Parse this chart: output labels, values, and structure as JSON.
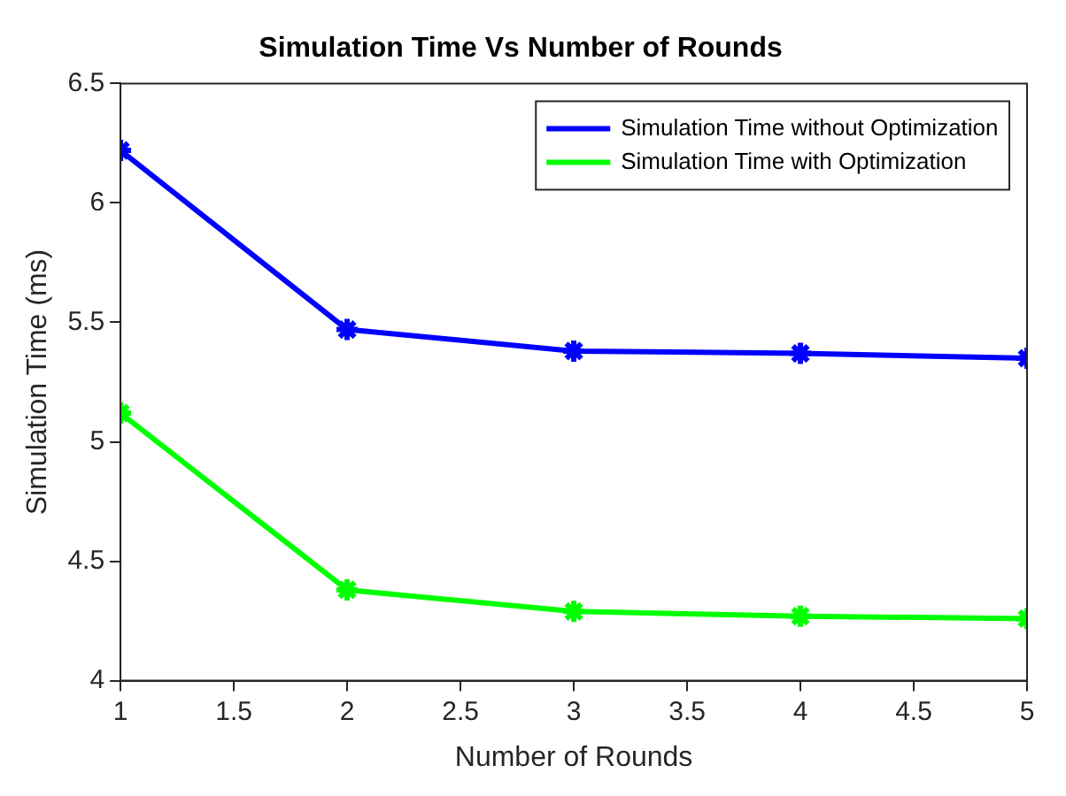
{
  "chart_data": {
    "type": "line",
    "title": "Simulation Time Vs Number of Rounds",
    "xlabel": "Number of Rounds",
    "ylabel": "Simulation Time (ms)",
    "x": [
      1,
      2,
      3,
      4,
      5
    ],
    "series": [
      {
        "name": "Simulation Time without Optimization",
        "color": "#0000ff",
        "values": [
          6.22,
          5.47,
          5.38,
          5.37,
          5.35
        ]
      },
      {
        "name": "Simulation Time with Optimization",
        "color": "#00ff00",
        "values": [
          5.12,
          4.38,
          4.29,
          4.27,
          4.26
        ]
      }
    ],
    "xlim": [
      1,
      5
    ],
    "xticks": [
      1,
      1.5,
      2,
      2.5,
      3,
      3.5,
      4,
      4.5,
      5
    ],
    "ylim": [
      4,
      6.5
    ],
    "yticks": [
      4,
      4.5,
      5,
      5.5,
      6,
      6.5
    ],
    "grid": false,
    "legend": "top right",
    "marker": "cross",
    "line_style": "solid"
  }
}
